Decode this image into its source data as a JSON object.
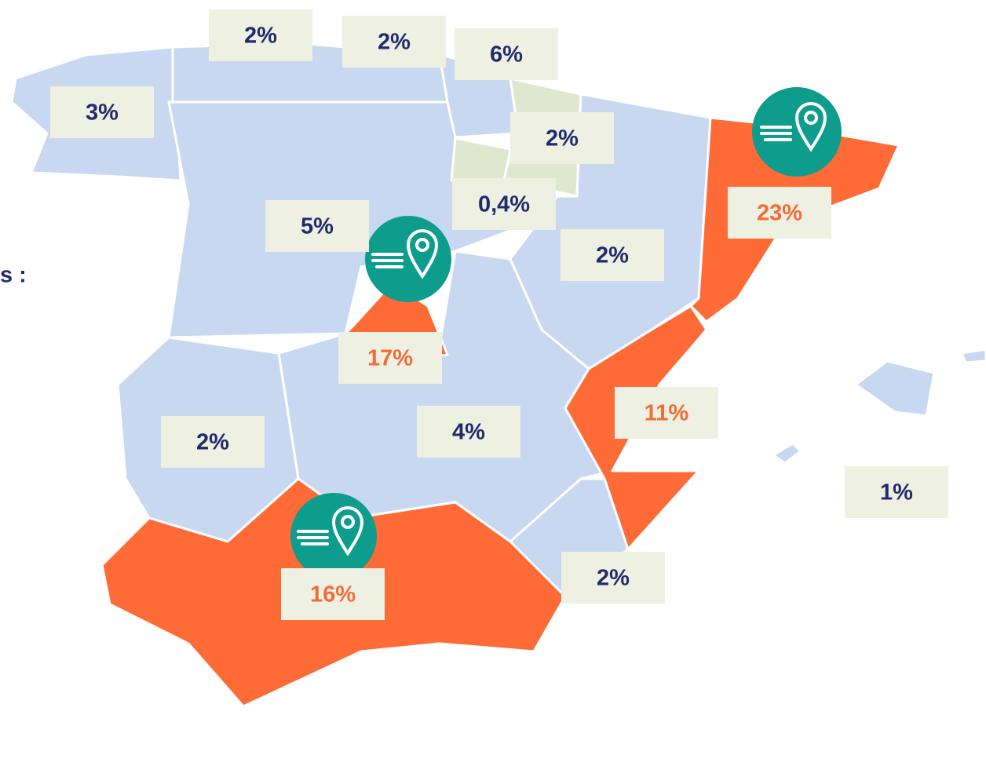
{
  "partial_text": "s :",
  "regions": [
    {
      "name_hidden": false,
      "label": "3%",
      "highlight": false
    },
    {
      "label": "2%",
      "highlight": false
    },
    {
      "label": "2%",
      "highlight": false
    },
    {
      "label": "6%",
      "highlight": false
    },
    {
      "label": "2%",
      "highlight": false
    },
    {
      "label": "0,4%",
      "highlight": false
    },
    {
      "label": "5%",
      "highlight": false
    },
    {
      "label": "2%",
      "highlight": false
    },
    {
      "label": "23%",
      "highlight": true
    },
    {
      "label": "17%",
      "highlight": true
    },
    {
      "label": "11%",
      "highlight": true
    },
    {
      "label": "2%",
      "highlight": false
    },
    {
      "label": "4%",
      "highlight": false
    },
    {
      "label": "2%",
      "highlight": false
    },
    {
      "label": "16%",
      "highlight": true
    },
    {
      "label": "1%",
      "highlight": false
    }
  ]
}
